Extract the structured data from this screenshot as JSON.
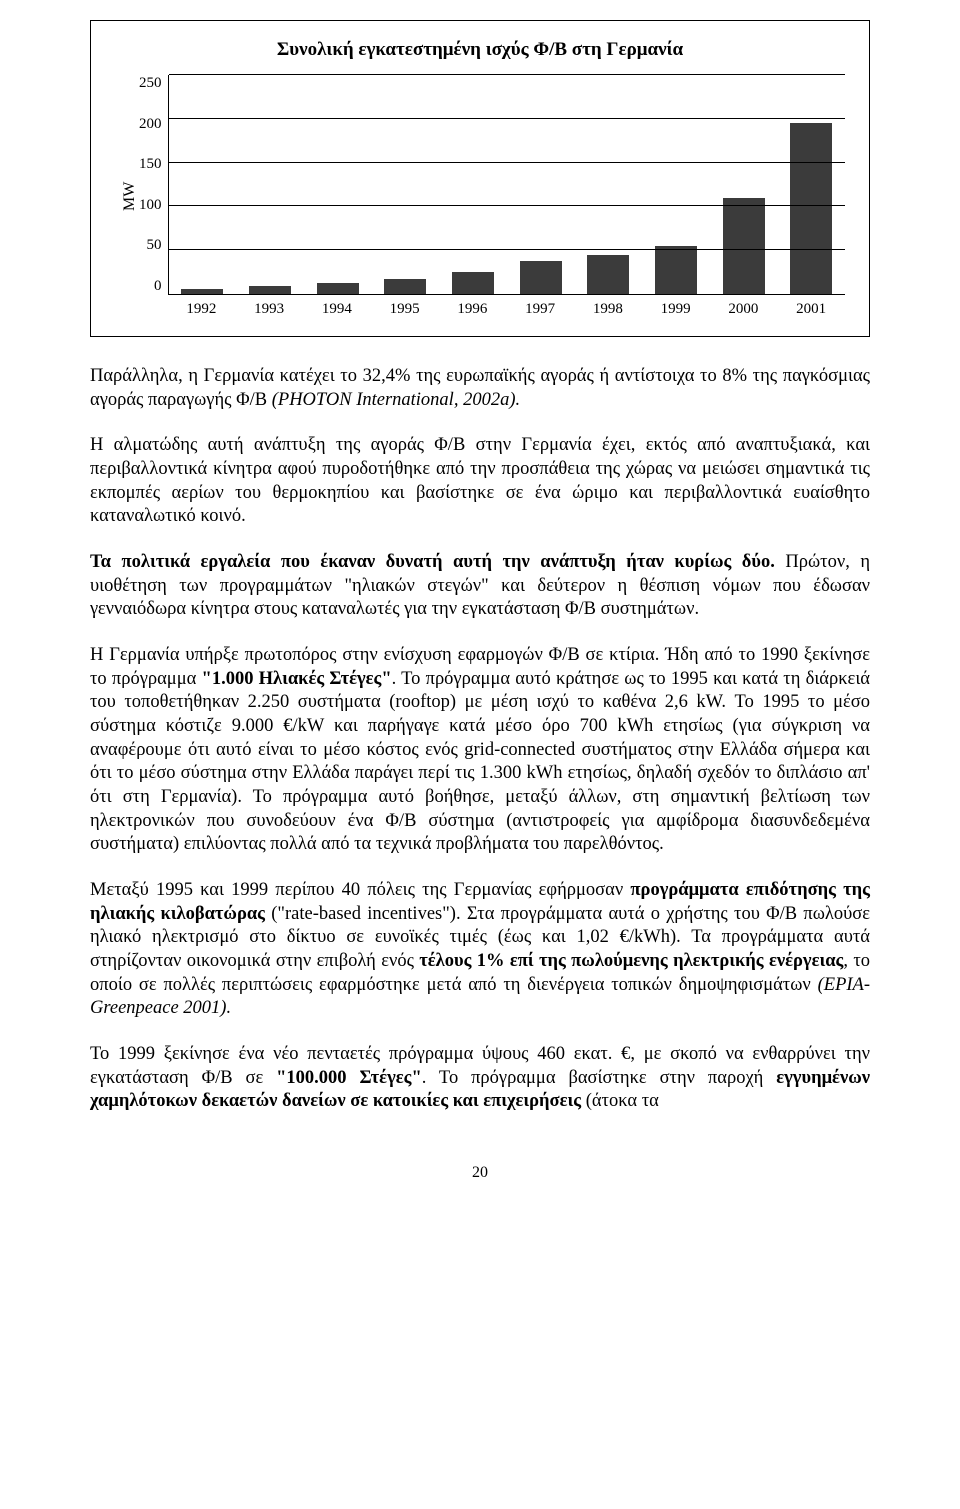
{
  "chart": {
    "type": "bar",
    "title": "Συνολική εγκατεστημένη ισχύς Φ/Β στη Γερμανία",
    "ylabel": "MW",
    "categories": [
      "1992",
      "1993",
      "1994",
      "1995",
      "1996",
      "1997",
      "1998",
      "1999",
      "2000",
      "2001"
    ],
    "values": [
      6,
      9,
      13,
      17,
      25,
      38,
      45,
      55,
      110,
      195
    ],
    "ylim": [
      0,
      250
    ],
    "yticks": [
      "250",
      "200",
      "150",
      "100",
      "50",
      "0"
    ],
    "ytick_step": 50,
    "bar_color": "#3b3b3b",
    "grid_color": "#000000",
    "background_color": "#ffffff",
    "bar_width": 0.62,
    "title_fontsize": 19,
    "label_fontsize": 16
  },
  "paragraphs": {
    "p1_a": "Παράλληλα, η Γερμανία κατέχει το 32,4% της ευρωπαϊκής αγοράς ή αντίστοιχα το 8% της παγκόσμιας αγοράς παραγωγής Φ/Β ",
    "p1_i": "(PHOTON International, 2002a).",
    "p2": "Η αλματώδης αυτή ανάπτυξη της αγοράς Φ/Β στην Γερμανία έχει, εκτός από αναπτυξιακά, και περιβαλλοντικά κίνητρα αφού πυροδοτήθηκε από την προσπάθεια της χώρας να μειώσει σημαντικά τις εκπομπές αερίων του θερμοκηπίου και βασίστηκε σε ένα ώριμο και περιβαλλοντικά ευαίσθητο καταναλωτικό κοινό.",
    "p3_b": "Τα πολιτικά εργαλεία που έκαναν δυνατή αυτή την ανάπτυξη ήταν κυρίως δύο. ",
    "p3_rest": "Πρώτον, η υιοθέτηση των προγραμμάτων \"ηλιακών στεγών\" και δεύτερον η θέσπιση νόμων που έδωσαν γενναιόδωρα κίνητρα στους καταναλωτές για την εγκατάσταση Φ/Β συστημάτων.",
    "p4_a": "Η Γερμανία υπήρξε πρωτοπόρος στην ενίσχυση εφαρμογών Φ/Β σε κτίρια. Ήδη από το 1990 ξεκίνησε το πρόγραμμα ",
    "p4_b1": "\"1.000 Ηλιακές Στέγες\"",
    "p4_c": ". Το πρόγραμμα αυτό κράτησε ως το 1995 και κατά τη διάρκειά του τοποθετήθηκαν 2.250 συστήματα (rooftop) με μέση ισχύ το καθένα 2,6 kW. Το 1995 το μέσο σύστημα κόστιζε 9.000 €/kW και παρήγαγε κατά μέσο όρο 700 kWh ετησίως (για σύγκριση να αναφέρουμε ότι αυτό είναι το μέσο κόστος ενός grid-connected συστήματος στην Ελλάδα σήμερα και ότι το μέσο σύστημα στην Ελλάδα παράγει περί τις 1.300 kWh ετησίως, δηλαδή σχεδόν το διπλάσιο απ' ότι στη Γερμανία). Το πρόγραμμα αυτό βοήθησε, μεταξύ άλλων, στη σημαντική βελτίωση των ηλεκτρονικών που συνοδεύουν ένα Φ/Β σύστημα (αντιστροφείς για αμφίδρομα διασυνδεδεμένα συστήματα) επιλύοντας πολλά από τα τεχνικά προβλήματα του παρελθόντος.",
    "p5_a": "Μεταξύ 1995 και 1999 περίπου 40 πόλεις της Γερμανίας εφήρμοσαν ",
    "p5_b1": "προγράμματα επιδότησης της ηλιακής κιλοβατώρας",
    "p5_b": " (\"rate-based incentives\"). Στα προγράμματα αυτά ο χρήστης του Φ/Β πωλούσε ηλιακό ηλεκτρισμό στο δίκτυο σε ευνοϊκές τιμές (έως και 1,02 €/kWh). Τα προγράμματα αυτά στηρίζονταν οικονομικά στην επιβολή ενός ",
    "p5_b2": "τέλους 1% επί της πωλούμενης ηλεκτρικής ενέργειας",
    "p5_c": ", το οποίο σε πολλές περιπτώσεις εφαρμόστηκε μετά από τη διενέργεια τοπικών δημοψηφισμάτων ",
    "p5_i": "(EPIA-Greenpeace 2001).",
    "p6_a": "Το 1999 ξεκίνησε ένα νέο πενταετές πρόγραμμα ύψους 460 εκατ. €, με σκοπό να ενθαρρύνει την εγκατάσταση Φ/Β σε ",
    "p6_b1": "\"100.000 Στέγες\"",
    "p6_b": ". Το πρόγραμμα βασίστηκε στην παροχή ",
    "p6_b2": "εγγυημένων χαμηλότοκων δεκαετών δανείων σε κατοικίες και επιχειρήσεις",
    "p6_c": " (άτοκα τα"
  },
  "pagenum": "20"
}
